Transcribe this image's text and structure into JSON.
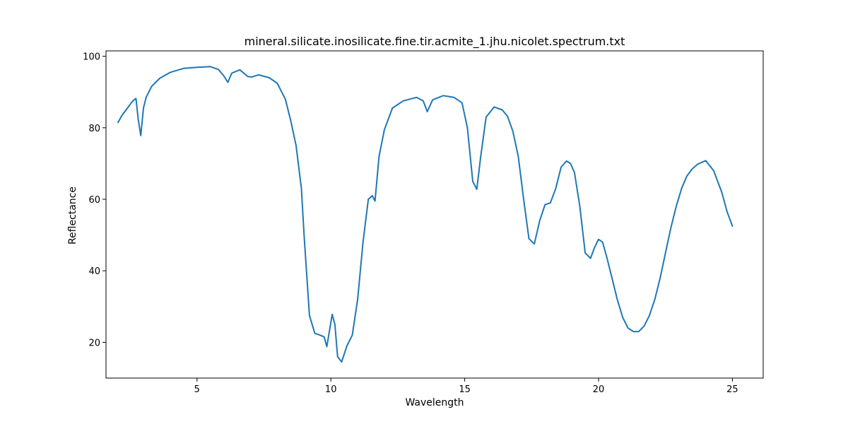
{
  "chart_data": {
    "type": "line",
    "title": "mineral.silicate.inosilicate.fine.tir.acmite_1.jhu.nicolet.spectrum.txt",
    "xlabel": "Wavelength",
    "ylabel": "Reflectance",
    "xlim": [
      1.6,
      26.15
    ],
    "ylim": [
      10.0,
      101.5
    ],
    "xticks": [
      5,
      10,
      15,
      20,
      25
    ],
    "yticks": [
      20,
      40,
      60,
      80,
      100
    ],
    "grid": false,
    "series": [
      {
        "color": "#1f77b4",
        "x": [
          2.05,
          2.2,
          2.4,
          2.6,
          2.72,
          2.8,
          2.9,
          3.0,
          3.1,
          3.3,
          3.6,
          4.0,
          4.5,
          5.0,
          5.5,
          5.8,
          6.0,
          6.15,
          6.3,
          6.6,
          6.9,
          7.05,
          7.3,
          7.7,
          8.0,
          8.3,
          8.5,
          8.7,
          8.9,
          9.0,
          9.2,
          9.4,
          9.6,
          9.75,
          9.85,
          10.05,
          10.15,
          10.25,
          10.4,
          10.6,
          10.8,
          11.0,
          11.2,
          11.4,
          11.55,
          11.65,
          11.8,
          12.0,
          12.3,
          12.7,
          13.2,
          13.45,
          13.6,
          13.8,
          14.2,
          14.6,
          14.9,
          15.1,
          15.3,
          15.45,
          15.6,
          15.8,
          16.1,
          16.4,
          16.6,
          16.8,
          17.0,
          17.2,
          17.4,
          17.6,
          17.8,
          18.0,
          18.2,
          18.4,
          18.6,
          18.8,
          18.95,
          19.1,
          19.3,
          19.5,
          19.7,
          19.85,
          20.0,
          20.15,
          20.3,
          20.5,
          20.7,
          20.9,
          21.1,
          21.3,
          21.5,
          21.7,
          21.9,
          22.1,
          22.3,
          22.5,
          22.7,
          22.9,
          23.1,
          23.3,
          23.5,
          23.7,
          24.0,
          24.3,
          24.6,
          24.8,
          25.0
        ],
        "y": [
          81.5,
          83.5,
          85.5,
          87.5,
          88.2,
          82.5,
          77.8,
          85.5,
          88.5,
          91.5,
          93.8,
          95.5,
          96.6,
          96.9,
          97.1,
          96.3,
          94.5,
          92.7,
          95.3,
          96.2,
          94.3,
          94.2,
          94.8,
          94.0,
          92.4,
          88.0,
          82.0,
          75.0,
          63.0,
          50.0,
          27.5,
          22.5,
          22.0,
          21.5,
          18.8,
          27.8,
          25.0,
          16.0,
          14.5,
          19.0,
          22.0,
          32.0,
          48.0,
          60.0,
          61.0,
          59.5,
          72.0,
          79.5,
          85.5,
          87.5,
          88.5,
          87.5,
          84.5,
          87.8,
          89.0,
          88.5,
          87.0,
          80.0,
          65.0,
          62.8,
          72.0,
          83.0,
          85.8,
          85.0,
          83.2,
          79.0,
          72.0,
          60.0,
          49.0,
          47.5,
          54.0,
          58.5,
          59.0,
          63.0,
          69.0,
          70.7,
          70.0,
          67.5,
          58.0,
          45.0,
          43.5,
          46.5,
          48.8,
          48.0,
          44.0,
          38.0,
          32.0,
          27.0,
          24.0,
          23.0,
          23.0,
          24.5,
          27.5,
          32.0,
          38.0,
          45.0,
          52.0,
          58.0,
          63.0,
          66.5,
          68.5,
          69.8,
          70.8,
          68.0,
          62.0,
          56.5,
          52.5
        ]
      }
    ]
  }
}
